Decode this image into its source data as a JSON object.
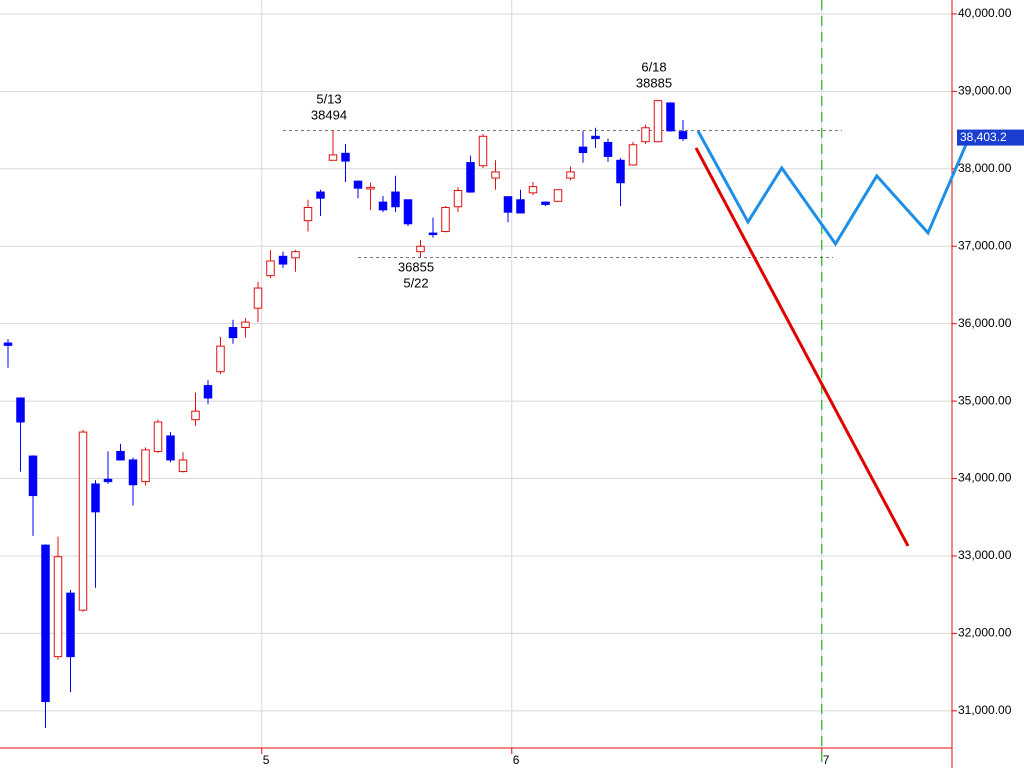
{
  "chart_data": {
    "type": "candlestick",
    "x": [
      0,
      1,
      2,
      3,
      4,
      5,
      6,
      7,
      8,
      9,
      10,
      11,
      12,
      13,
      14,
      15,
      16,
      17,
      18,
      19,
      20,
      21,
      22,
      23,
      24,
      25,
      26,
      27,
      28,
      29,
      30,
      31,
      32,
      33,
      34,
      35,
      36,
      37,
      38,
      39,
      40,
      41,
      42,
      43,
      44,
      45,
      46,
      47,
      48,
      49,
      50,
      51,
      52,
      53,
      54
    ],
    "open": [
      35750,
      35040,
      34290,
      33140,
      31700,
      32520,
      32300,
      33930,
      33990,
      34350,
      34240,
      33960,
      34350,
      34550,
      34090,
      34760,
      35200,
      35380,
      35950,
      35950,
      36200,
      36620,
      36870,
      36850,
      37330,
      37700,
      38110,
      38200,
      37840,
      37740,
      37570,
      37700,
      37600,
      36930,
      37170,
      37190,
      37510,
      38080,
      38040,
      37880,
      37640,
      37600,
      37690,
      37570,
      37580,
      37880,
      38280,
      38420,
      38340,
      38110,
      38050,
      38350,
      38350,
      38850,
      38480
    ],
    "high": [
      35800,
      35050,
      34300,
      33150,
      33250,
      32560,
      34630,
      33980,
      34350,
      34450,
      34270,
      34400,
      34760,
      34600,
      34340,
      35110,
      35270,
      35830,
      36050,
      36070,
      36540,
      36950,
      36930,
      36950,
      37600,
      37730,
      38494,
      38320,
      37850,
      37820,
      37650,
      37910,
      37600,
      37080,
      37370,
      37520,
      37760,
      38170,
      38450,
      38110,
      37640,
      37730,
      37830,
      37580,
      37730,
      38030,
      38490,
      38530,
      38390,
      38140,
      38350,
      38570,
      38885,
      38860,
      38630
    ],
    "low": [
      35430,
      34090,
      33260,
      30780,
      31660,
      31240,
      32280,
      32590,
      33930,
      34240,
      33650,
      33910,
      34330,
      34210,
      34080,
      34680,
      34960,
      35350,
      35740,
      35820,
      36020,
      36590,
      36720,
      36670,
      37190,
      37390,
      38110,
      37830,
      37620,
      37470,
      37440,
      37440,
      37260,
      36855,
      37110,
      37180,
      37440,
      37690,
      38010,
      37730,
      37310,
      37430,
      37660,
      37520,
      37570,
      37850,
      38080,
      38270,
      38090,
      37520,
      38040,
      38320,
      38340,
      38480,
      38360
    ],
    "close": [
      35720,
      34730,
      33780,
      31120,
      32990,
      31700,
      34600,
      33570,
      33960,
      34240,
      33920,
      34370,
      34730,
      34240,
      34240,
      34870,
      35040,
      35710,
      35820,
      36020,
      36460,
      36810,
      36770,
      36930,
      37500,
      37620,
      38180,
      38100,
      37750,
      37760,
      37470,
      37510,
      37290,
      37000,
      37160,
      37500,
      37720,
      37700,
      38420,
      37960,
      37440,
      37430,
      37770,
      37540,
      37730,
      37960,
      38210,
      38390,
      38160,
      37820,
      38310,
      38530,
      38880,
      38490,
      38390
    ],
    "up_color": "#e01010",
    "down_color": "#0000ff",
    "xlim": [
      -0.64,
      75.52
    ],
    "xticks": [
      {
        "value": 20.3,
        "label": "5"
      },
      {
        "value": 40.3,
        "label": "6"
      },
      {
        "value": 65.1,
        "label": "7"
      }
    ],
    "ylim": [
      30520,
      40180
    ],
    "yticks": [
      {
        "value": 31000,
        "label": "31,000.00"
      },
      {
        "value": 32000,
        "label": "32,000.00"
      },
      {
        "value": 33000,
        "label": "33,000.00"
      },
      {
        "value": 34000,
        "label": "34,000.00"
      },
      {
        "value": 35000,
        "label": "35,000.00"
      },
      {
        "value": 36000,
        "label": "36,000.00"
      },
      {
        "value": 37000,
        "label": "37,000.00"
      },
      {
        "value": 38000,
        "label": "38,000.00"
      },
      {
        "value": 39000,
        "label": "39,000.00"
      },
      {
        "value": 40000,
        "label": "40,000.00"
      }
    ],
    "grid": true,
    "current_price": {
      "value": 38403.2,
      "label": "38,403.2"
    },
    "marker_line": {
      "x": 65.1,
      "color": "#22bb22"
    },
    "levels": [
      {
        "date": "5/13",
        "value": 38494,
        "dashed": true
      },
      {
        "date": "5/22",
        "value": 36855,
        "dashed": true
      },
      {
        "date": "6/18",
        "value": 38885,
        "dashed": false
      }
    ],
    "forecasts": [
      {
        "color": "#1e8fe8",
        "x": [
          55.2,
          59.2,
          61.9,
          66.2,
          69.5,
          73.6,
          76.8
        ],
        "values": [
          38488,
          37314,
          38011,
          37030,
          37908,
          37172,
          38373
        ]
      },
      {
        "color": "#e00000",
        "x": [
          55.04,
          72
        ],
        "values": [
          38270,
          33130
        ]
      }
    ]
  }
}
